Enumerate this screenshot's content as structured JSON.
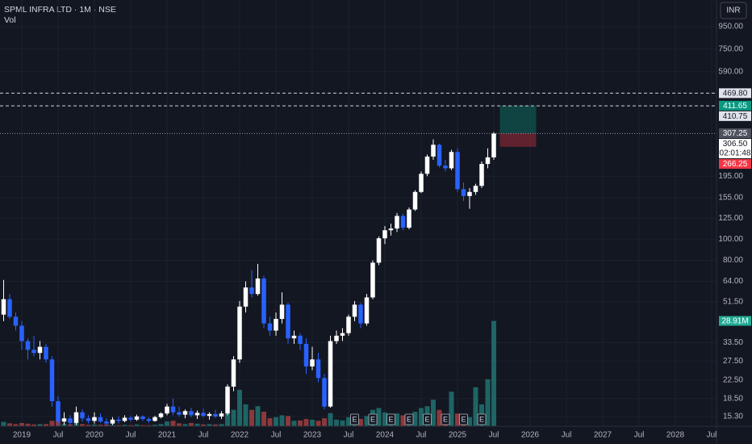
{
  "chart_data": {
    "type": "candlestick",
    "title": "SPML INFRA LTD · 1M · NSE",
    "volume_title": "Vol",
    "currency": "INR",
    "log_scale": true,
    "grid": true,
    "up_color": "#ffffff",
    "down_color": "#2962ff",
    "volume_up_color": "rgba(38,166,154,0.55)",
    "volume_down_color": "rgba(239,83,80,0.55)",
    "x": [
      -3,
      -2,
      -1,
      0,
      1,
      2,
      3,
      4,
      5,
      6,
      7,
      8,
      9,
      10,
      11,
      12,
      13,
      14,
      15,
      16,
      17,
      18,
      19,
      20,
      21,
      22,
      23,
      24,
      25,
      26,
      27,
      28,
      29,
      30,
      31,
      32,
      33,
      34,
      35,
      36,
      37,
      38,
      39,
      40,
      41,
      42,
      43,
      44,
      45,
      46,
      47,
      48,
      49,
      50,
      51,
      52,
      53,
      54,
      55,
      56,
      57,
      58,
      59,
      60,
      61,
      62,
      63,
      64,
      65,
      66,
      67,
      68,
      69,
      70,
      71,
      72,
      73,
      74,
      75,
      76,
      77,
      78
    ],
    "open": [
      45,
      53,
      44,
      40,
      34,
      31,
      30,
      32,
      28,
      18,
      14.5,
      15,
      14.3,
      16,
      15,
      14.6,
      15.2,
      14.5,
      14.2,
      14.8,
      14.6,
      15.1,
      14.8,
      15.3,
      14.9,
      14.6,
      15.2,
      15.8,
      17,
      16,
      15.6,
      16.2,
      15.5,
      15.9,
      15.4,
      15.7,
      15.3,
      15.8,
      21,
      28,
      49,
      60,
      56,
      66,
      41,
      38,
      43,
      50,
      35,
      36,
      33,
      26,
      28,
      23,
      17,
      34,
      36,
      37,
      44,
      50,
      41,
      54,
      78,
      101,
      110,
      112,
      128,
      113,
      137,
      165,
      200,
      240,
      272,
      218,
      212,
      252,
      170,
      158,
      165,
      176,
      222,
      238
    ],
    "high": [
      65,
      56,
      46,
      42,
      35,
      36,
      34,
      33,
      29,
      19,
      16,
      15.5,
      17,
      16.5,
      15.5,
      16,
      15.8,
      15,
      15.2,
      15.3,
      15.5,
      15.4,
      15.6,
      15.5,
      15.2,
      15.4,
      16,
      17.5,
      18.5,
      17,
      16.5,
      16.8,
      16.3,
      16.6,
      16,
      16.4,
      16.2,
      21.5,
      29,
      52,
      64,
      72,
      77,
      68,
      44,
      46,
      57,
      51,
      38,
      37,
      35,
      32,
      30,
      24,
      36,
      38,
      39,
      45,
      52,
      51,
      56,
      80,
      103,
      115,
      118,
      132,
      131,
      140,
      168,
      205,
      245,
      288,
      275,
      232,
      258,
      262,
      182,
      172,
      180,
      228,
      262,
      311
    ],
    "low": [
      42,
      43,
      38,
      31,
      28,
      29,
      28,
      27,
      17,
      13.9,
      14,
      14,
      14,
      14.5,
      14.2,
      14.2,
      14.3,
      13.9,
      14,
      14.2,
      14.4,
      14.5,
      14.6,
      14.6,
      14.3,
      14.5,
      15,
      15.5,
      15.5,
      15.3,
      15,
      15.2,
      14.9,
      15.2,
      14.8,
      15.1,
      14.9,
      15.5,
      20,
      27,
      46,
      54,
      55,
      39,
      36,
      36,
      41,
      33,
      33,
      31,
      24,
      25,
      22,
      16.5,
      16.8,
      33,
      34,
      36,
      42,
      39,
      40,
      53,
      76,
      95,
      104,
      108,
      110,
      111,
      135,
      163,
      195,
      232,
      214,
      205,
      208,
      165,
      150,
      138,
      160,
      172,
      212,
      232
    ],
    "close": [
      53,
      44,
      40,
      34,
      31,
      30,
      32,
      28,
      18,
      14.5,
      15,
      14.3,
      16,
      15,
      14.6,
      15.2,
      14.5,
      14.2,
      14.8,
      14.6,
      15.1,
      14.8,
      15.3,
      14.9,
      14.6,
      15.2,
      15.8,
      17,
      16,
      15.6,
      16.2,
      15.5,
      15.9,
      15.4,
      15.7,
      15.3,
      15.8,
      21,
      28,
      49,
      60,
      56,
      66,
      41,
      38,
      43,
      50,
      35,
      36,
      33,
      26,
      28,
      23,
      17,
      34,
      36,
      37,
      44,
      50,
      41,
      54,
      78,
      101,
      110,
      112,
      128,
      113,
      137,
      165,
      200,
      240,
      272,
      218,
      212,
      252,
      170,
      158,
      165,
      176,
      222,
      238,
      306.5
    ],
    "volume": [
      1.2,
      0.8,
      0.6,
      0.9,
      0.7,
      0.5,
      0.6,
      0.6,
      1.5,
      1.8,
      0.7,
      0.5,
      0.9,
      0.6,
      0.4,
      0.5,
      0.4,
      0.5,
      0.4,
      0.3,
      0.4,
      0.3,
      0.5,
      0.3,
      0.3,
      0.4,
      0.6,
      1.3,
      1.5,
      0.8,
      0.6,
      0.9,
      0.7,
      0.5,
      0.6,
      0.5,
      0.6,
      3.5,
      4.5,
      10,
      6,
      4.5,
      5.5,
      4,
      2.2,
      2.5,
      3,
      2.8,
      1.5,
      1.6,
      2,
      1.8,
      1.5,
      2.2,
      3.6,
      1.8,
      1.6,
      2.5,
      2.4,
      2,
      2.8,
      4.5,
      5,
      3.8,
      3,
      3.5,
      3,
      3.2,
      4,
      5,
      5.5,
      7.3,
      4.5,
      3,
      9.5,
      3.5,
      3,
      2.5,
      10.7,
      6,
      12.9,
      28.91
    ],
    "volume_last_label": "28.91M",
    "volume_ylim": [
      0,
      117
    ],
    "xlim": [
      -3.6,
      114.8
    ],
    "xticks": [
      {
        "value": 0,
        "label": "2019"
      },
      {
        "value": 6,
        "label": "Jul"
      },
      {
        "value": 12,
        "label": "2020"
      },
      {
        "value": 18,
        "label": "Jul"
      },
      {
        "value": 24,
        "label": "2021"
      },
      {
        "value": 30,
        "label": "Jul"
      },
      {
        "value": 36,
        "label": "2022"
      },
      {
        "value": 42,
        "label": "Jul"
      },
      {
        "value": 48,
        "label": "2023"
      },
      {
        "value": 54,
        "label": "Jul"
      },
      {
        "value": 60,
        "label": "2024"
      },
      {
        "value": 66,
        "label": "Jul"
      },
      {
        "value": 72,
        "label": "2025"
      },
      {
        "value": 78,
        "label": "Jul"
      },
      {
        "value": 84,
        "label": "2026"
      },
      {
        "value": 90,
        "label": "Jul"
      },
      {
        "value": 96,
        "label": "2027"
      },
      {
        "value": 102,
        "label": "Jul"
      },
      {
        "value": 108,
        "label": "2028"
      },
      {
        "value": 114,
        "label": "Jul"
      }
    ],
    "ylim": [
      13.8,
      1260
    ],
    "yticks": [
      {
        "value": 15.3,
        "label": "15.30"
      },
      {
        "value": 18.5,
        "label": "18.50"
      },
      {
        "value": 22.5,
        "label": "22.50"
      },
      {
        "value": 27.5,
        "label": "27.50"
      },
      {
        "value": 33.5,
        "label": "33.50"
      },
      {
        "value": 51.5,
        "label": "51.50"
      },
      {
        "value": 64,
        "label": "64.00"
      },
      {
        "value": 80,
        "label": "80.00"
      },
      {
        "value": 100,
        "label": "100.00"
      },
      {
        "value": 125,
        "label": "125.00"
      },
      {
        "value": 155,
        "label": "155.00"
      },
      {
        "value": 195,
        "label": "195.00"
      },
      {
        "value": 590,
        "label": "590.00"
      },
      {
        "value": 750,
        "label": "750.00"
      },
      {
        "value": 950,
        "label": "950.00"
      }
    ],
    "earnings": [
      {
        "x": 55,
        "label": "E"
      },
      {
        "x": 58,
        "label": "E"
      },
      {
        "x": 61,
        "label": "E"
      },
      {
        "x": 64,
        "label": "E"
      },
      {
        "x": 67,
        "label": "E"
      },
      {
        "x": 70,
        "label": "E"
      },
      {
        "x": 73,
        "label": "E"
      },
      {
        "x": 76,
        "label": "E"
      }
    ],
    "horizontal_lines": [
      {
        "value": 469.8,
        "label": "469.80"
      },
      {
        "value": 410.75,
        "label": "410.75"
      }
    ],
    "position": {
      "x_start": 79,
      "x_end": 85,
      "entry": 307.25,
      "entry_label": "307.25",
      "target": 411.65,
      "target_label": "411.65",
      "stop": 266.25,
      "stop_label": "266.25"
    },
    "last_price": {
      "value": 306.5,
      "label": "306.50",
      "countdown": "02:01:48"
    }
  }
}
